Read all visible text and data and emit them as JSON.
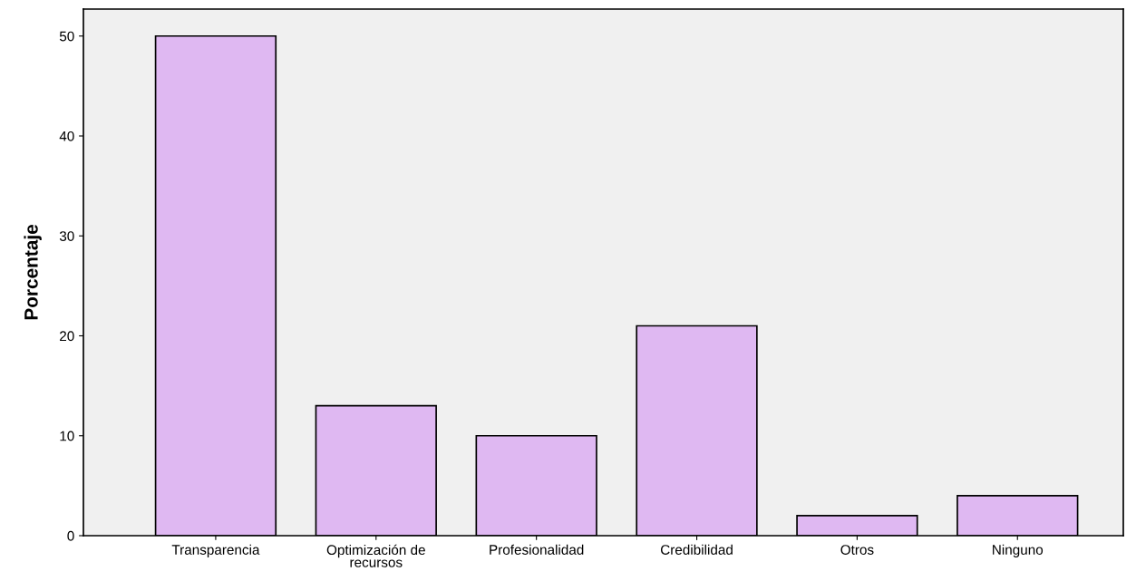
{
  "chart_data": {
    "type": "bar",
    "ylabel": "Porcentaje",
    "categories": [
      "Transparencia",
      "Optimización de\nrecursos",
      "Profesionalidad",
      "Credibilidad",
      "Otros",
      "Ninguno"
    ],
    "values": [
      50,
      13,
      10,
      21,
      2,
      4
    ],
    "color": "#dfb8f2",
    "ylim": [
      0,
      52.7
    ],
    "yticks": [
      0,
      10,
      20,
      30,
      40,
      50
    ],
    "grid": false,
    "legend": false
  }
}
